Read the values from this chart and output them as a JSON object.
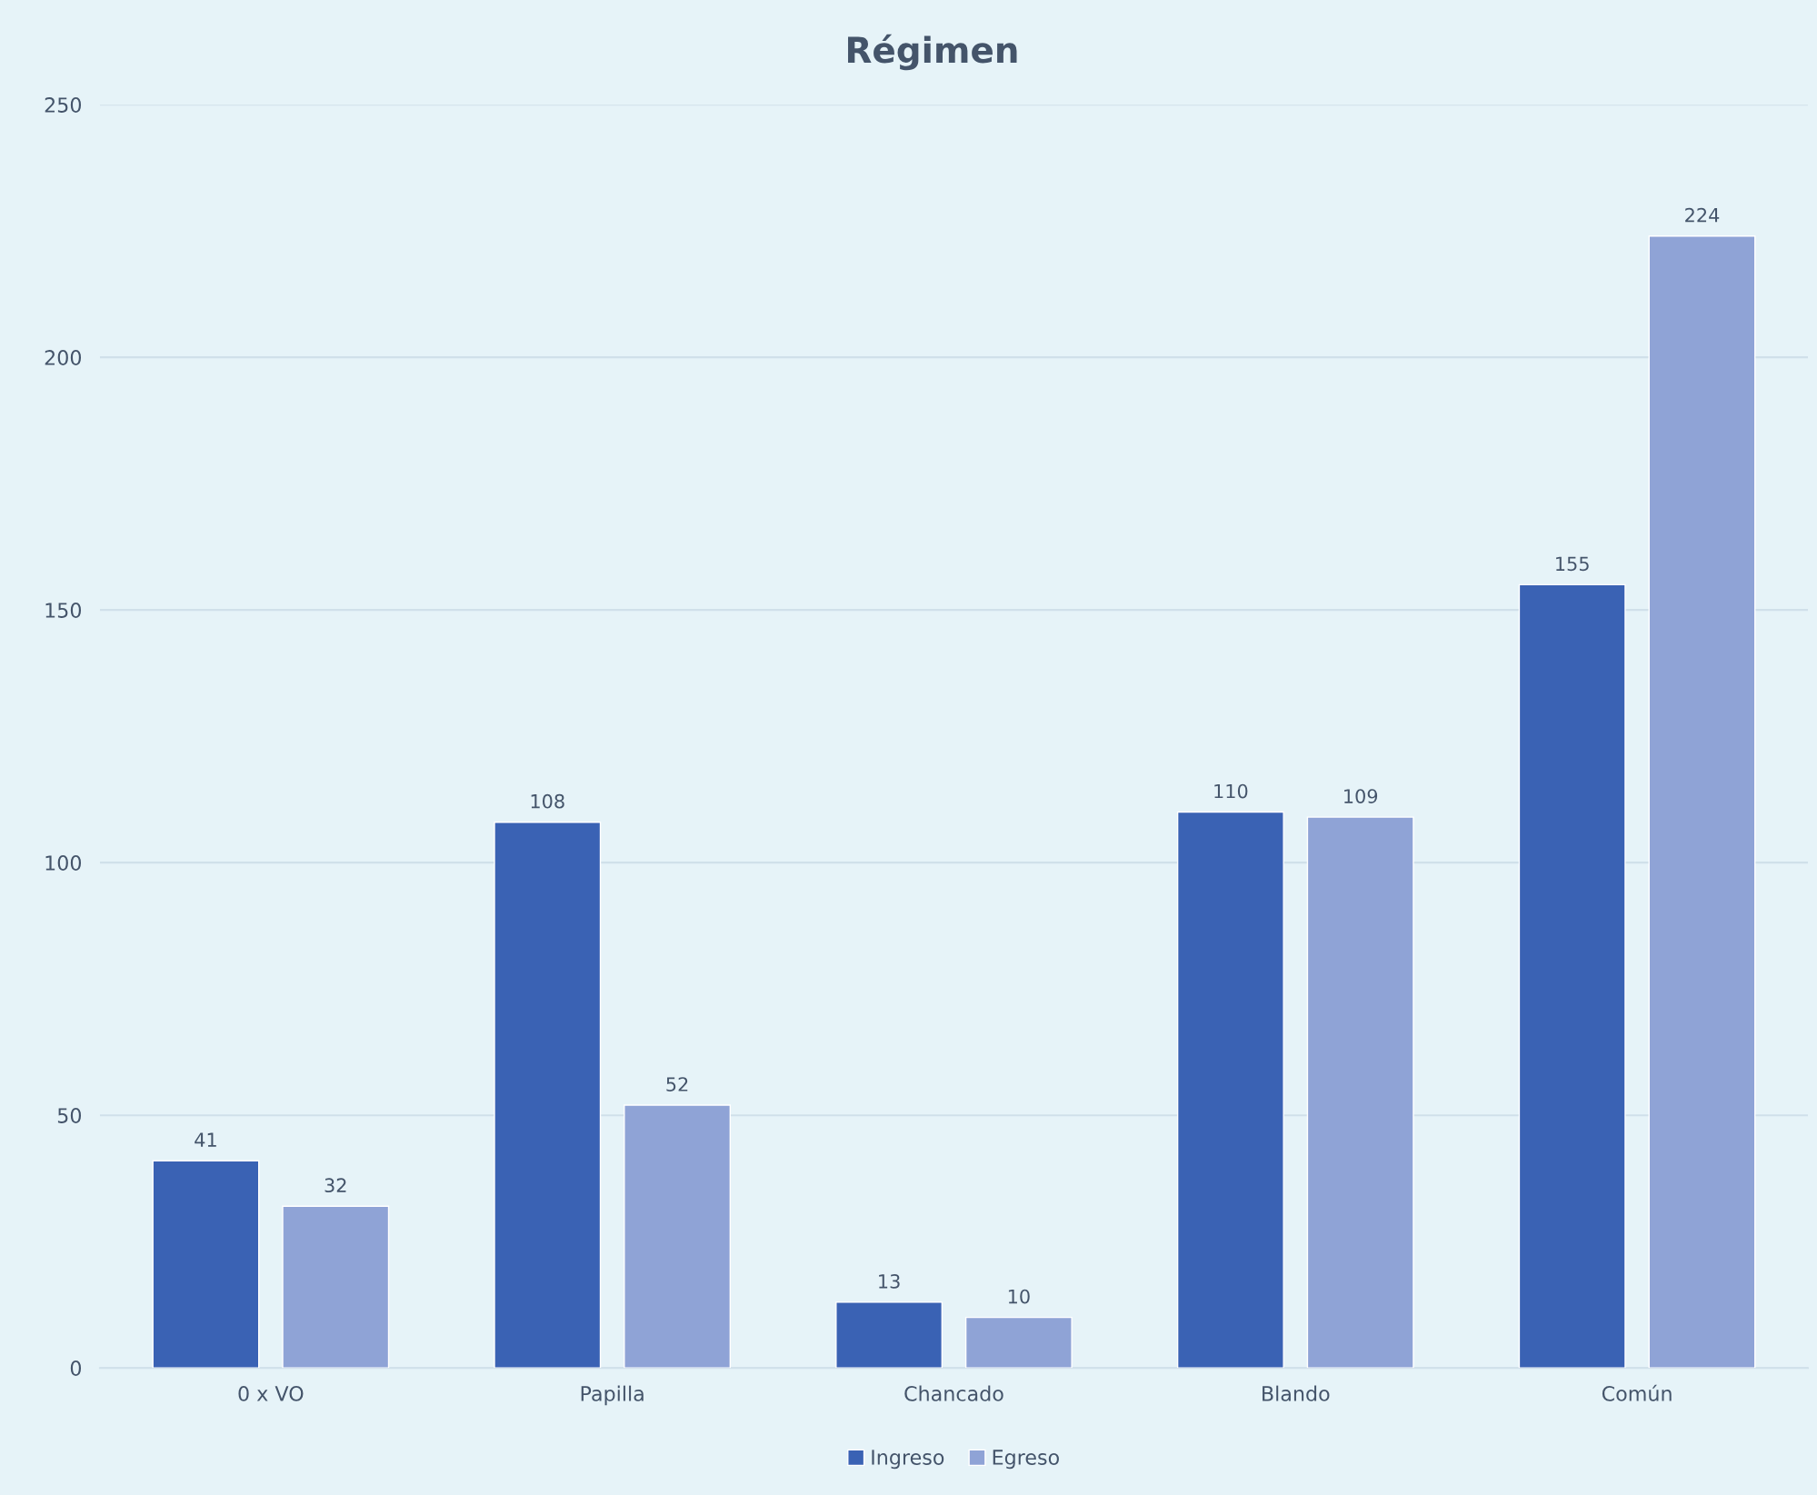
{
  "chart_data": {
    "type": "bar",
    "title": "Régimen",
    "categories": [
      "0 x VO",
      "Papilla",
      "Chancado",
      "Blando",
      "Común"
    ],
    "series": [
      {
        "name": "Ingreso",
        "color": "#3a62b4",
        "values": [
          41,
          108,
          13,
          110,
          155
        ]
      },
      {
        "name": "Egreso",
        "color": "#8fa3d6",
        "values": [
          32,
          52,
          10,
          109,
          224
        ]
      }
    ],
    "ylim": [
      0,
      250
    ],
    "yticks": [
      0,
      50,
      100,
      150,
      200,
      250
    ],
    "grid": "y",
    "legend": "bottom",
    "data_labels": true
  }
}
